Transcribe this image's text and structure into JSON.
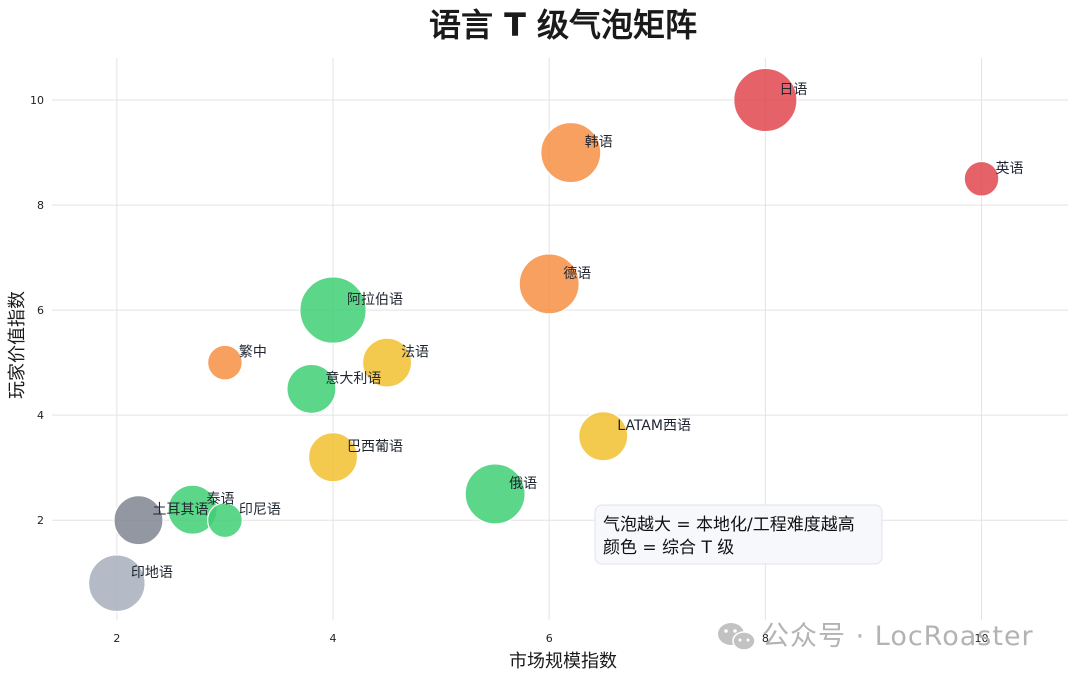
{
  "chart_data": {
    "type": "scatter",
    "subtype": "bubble",
    "title": "语言 T 级气泡矩阵",
    "xlabel": "市场规模指数",
    "ylabel": "玩家价值指数",
    "xlim": [
      1.4,
      10.8
    ],
    "ylim": [
      0.1,
      10.8
    ],
    "xticks": [
      "2",
      "4",
      "6",
      "8",
      "10"
    ],
    "yticks": [
      "2",
      "4",
      "6",
      "8",
      "10"
    ],
    "grid": true,
    "points": [
      {
        "label": "日语",
        "x": 8.0,
        "y": 10.0,
        "size": 10,
        "color": "#e2474f"
      },
      {
        "label": "韩语",
        "x": 6.2,
        "y": 9.0,
        "size": 9,
        "color": "#f68f43"
      },
      {
        "label": "英语",
        "x": 10.0,
        "y": 8.5,
        "size": 3,
        "color": "#e2474f"
      },
      {
        "label": "德语",
        "x": 6.0,
        "y": 6.5,
        "size": 9,
        "color": "#f68f43"
      },
      {
        "label": "阿拉伯语",
        "x": 4.0,
        "y": 6.0,
        "size": 11,
        "color": "#3fcf73"
      },
      {
        "label": "繁中",
        "x": 3.0,
        "y": 5.0,
        "size": 3,
        "color": "#f68f43"
      },
      {
        "label": "法语",
        "x": 4.5,
        "y": 5.0,
        "size": 6,
        "color": "#f2c12f"
      },
      {
        "label": "意大利语",
        "x": 3.8,
        "y": 4.5,
        "size": 6,
        "color": "#3fcf73"
      },
      {
        "label": "LATAM西语",
        "x": 6.5,
        "y": 3.6,
        "size": 6,
        "color": "#f2c12f"
      },
      {
        "label": "巴西葡语",
        "x": 4.0,
        "y": 3.2,
        "size": 6,
        "color": "#f2c12f"
      },
      {
        "label": "俄语",
        "x": 5.5,
        "y": 2.5,
        "size": 9,
        "color": "#3fcf73"
      },
      {
        "label": "泰语",
        "x": 2.7,
        "y": 2.2,
        "size": 6,
        "color": "#3fcf73"
      },
      {
        "label": "印尼语",
        "x": 3.0,
        "y": 2.0,
        "size": 3,
        "color": "#3fcf73"
      },
      {
        "label": "土耳其语",
        "x": 2.2,
        "y": 2.0,
        "size": 6,
        "color": "#7f8592"
      },
      {
        "label": "印地语",
        "x": 2.0,
        "y": 0.8,
        "size": 8,
        "color": "#a7afbd"
      }
    ],
    "annotation": [
      "气泡越大 = 本地化/工程难度越高",
      "颜色 = 综合 T 级"
    ]
  },
  "watermark": "公众号 · LocRoaster"
}
